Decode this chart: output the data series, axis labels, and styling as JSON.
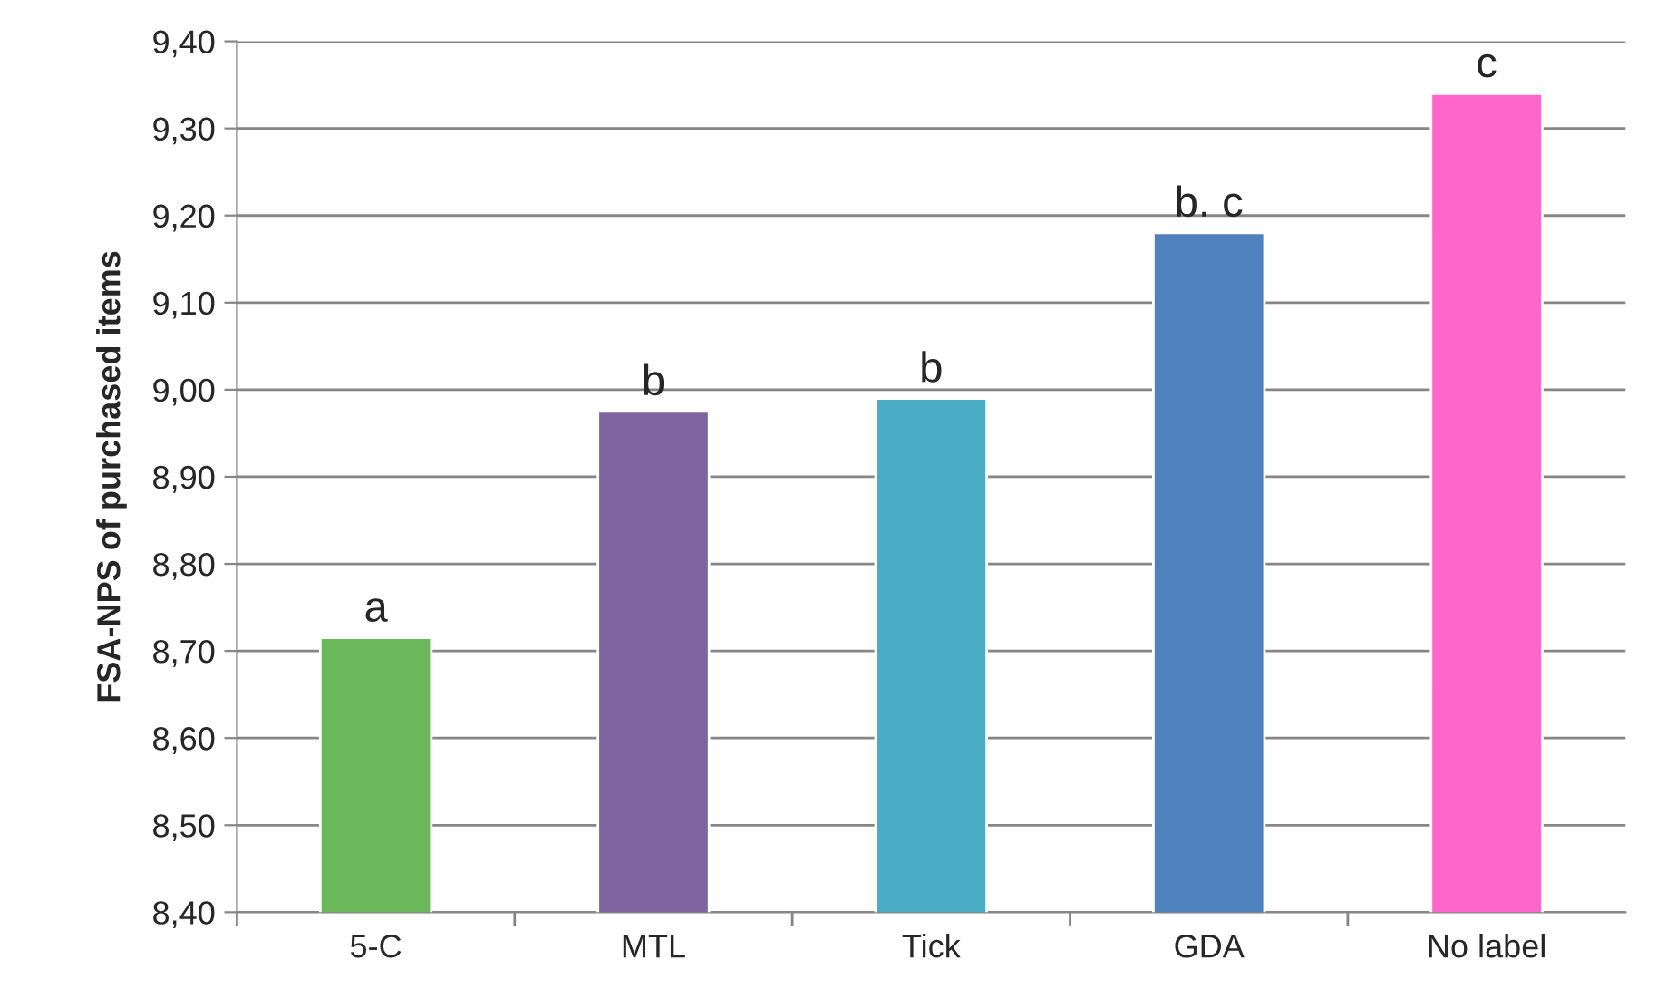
{
  "chart_data": {
    "type": "bar",
    "ylabel": "FSA-NPS of purchased items",
    "categories": [
      "5-C",
      "MTL",
      "Tick",
      "GDA",
      "No label"
    ],
    "values": [
      8.715,
      8.975,
      8.99,
      9.18,
      9.34
    ],
    "colors": [
      "#6ab85a",
      "#8064a2",
      "#4bacc6",
      "#4f81bd",
      "#ff66cc"
    ],
    "ylim": [
      8.4,
      9.4
    ],
    "yticks": [
      {
        "value": 8.4,
        "label": "8,40"
      },
      {
        "value": 8.5,
        "label": "8,50"
      },
      {
        "value": 8.6,
        "label": "8,60"
      },
      {
        "value": 8.7,
        "label": "8,70"
      },
      {
        "value": 8.8,
        "label": "8,80"
      },
      {
        "value": 8.9,
        "label": "8,90"
      },
      {
        "value": 9.0,
        "label": "9,00"
      },
      {
        "value": 9.1,
        "label": "9,10"
      },
      {
        "value": 9.2,
        "label": "9,20"
      },
      {
        "value": 9.3,
        "label": "9,30"
      },
      {
        "value": 9.4,
        "label": "9,40"
      }
    ],
    "grid": "y",
    "annotations": [
      {
        "text": "a",
        "x": "5-C",
        "y": 8.715
      },
      {
        "text": "b",
        "x": "MTL",
        "y": 8.975
      },
      {
        "text": "b",
        "x": "Tick",
        "y": 8.99
      },
      {
        "text": "b. c",
        "x": "GDA",
        "y": 9.18
      },
      {
        "text": "c",
        "x": "No label",
        "y": 9.34
      }
    ]
  }
}
